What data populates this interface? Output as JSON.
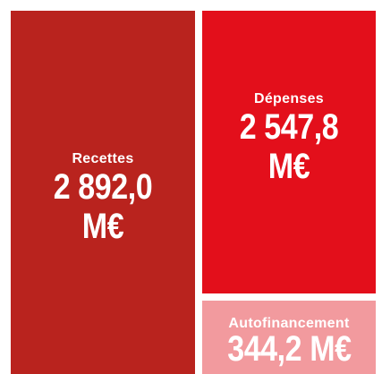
{
  "chart_data": {
    "type": "treemap",
    "categories": [
      "Recettes",
      "Dépenses",
      "Autofinancement"
    ],
    "values": [
      2892.0,
      2547.8,
      344.2
    ],
    "value_labels": [
      "2 892,0 M€",
      "2 547,8 M€",
      "344,2 M€"
    ],
    "colors": [
      "#b9231e",
      "#e30f1b",
      "#f29a9e"
    ]
  }
}
